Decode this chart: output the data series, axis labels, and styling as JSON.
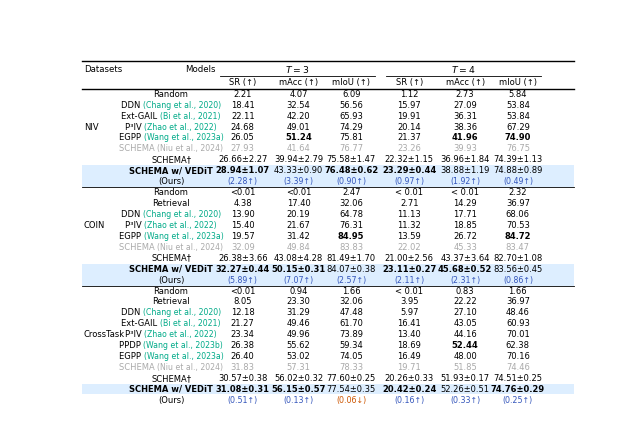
{
  "highlight_color": "#ddeeff",
  "gray_color": "#aaaaaa",
  "green_color": "#00aa88",
  "blue_color": "#3355bb",
  "orange_color": "#cc5500",
  "col_headers": [
    "SR (↑)",
    "mAcc (↑)",
    "mIoU (↑)",
    "SR (↑)",
    "mAcc (↑)",
    "mIoU (↑)"
  ],
  "sections": [
    {
      "dataset": "NIV",
      "ds_row": 3,
      "rows": [
        {
          "model": "Random",
          "cite": "",
          "cite_color": "",
          "gray": false,
          "bold_model": false,
          "bold_vals": [
            false,
            false,
            false,
            false,
            false,
            false
          ],
          "vals": [
            "2.21",
            "4.07",
            "6.09",
            "1.12",
            "2.73",
            "5.84"
          ],
          "ours": false,
          "highlight": false,
          "down_idx": []
        },
        {
          "model": "DDN",
          "cite": "(Chang et al., 2020)",
          "cite_color": "#00aa88",
          "gray": false,
          "bold_model": false,
          "bold_vals": [
            false,
            false,
            false,
            false,
            false,
            false
          ],
          "vals": [
            "18.41",
            "32.54",
            "56.56",
            "15.97",
            "27.09",
            "53.84"
          ],
          "ours": false,
          "highlight": false,
          "down_idx": []
        },
        {
          "model": "Ext-GAIL",
          "cite": "(Bi et al., 2021)",
          "cite_color": "#00aa88",
          "gray": false,
          "bold_model": false,
          "bold_vals": [
            false,
            false,
            false,
            false,
            false,
            false
          ],
          "vals": [
            "22.11",
            "42.20",
            "65.93",
            "19.91",
            "36.31",
            "53.84"
          ],
          "ours": false,
          "highlight": false,
          "down_idx": []
        },
        {
          "model": "P³IV",
          "cite": "(Zhao et al., 2022)",
          "cite_color": "#00aa88",
          "gray": false,
          "bold_model": false,
          "bold_vals": [
            false,
            false,
            false,
            false,
            false,
            false
          ],
          "vals": [
            "24.68",
            "49.01",
            "74.29",
            "20.14",
            "38.36",
            "67.29"
          ],
          "ours": false,
          "highlight": false,
          "down_idx": []
        },
        {
          "model": "EGPP",
          "cite": "(Wang et al., 2023a)",
          "cite_color": "#00aa88",
          "gray": false,
          "bold_model": false,
          "bold_vals": [
            false,
            true,
            false,
            false,
            true,
            true
          ],
          "vals": [
            "26.05",
            "51.24",
            "75.81",
            "21.37",
            "41.96",
            "74.90"
          ],
          "ours": false,
          "highlight": false,
          "down_idx": []
        },
        {
          "model": "SCHEMA",
          "cite": "(Niu et al., 2024)",
          "cite_color": "#aaaaaa",
          "gray": true,
          "bold_model": false,
          "bold_vals": [
            false,
            false,
            false,
            false,
            false,
            false
          ],
          "vals": [
            "27.93",
            "41.64",
            "76.77",
            "23.26",
            "39.93",
            "76.75"
          ],
          "ours": false,
          "highlight": false,
          "down_idx": []
        },
        {
          "model": "SCHEMA†",
          "cite": "",
          "cite_color": "",
          "gray": false,
          "bold_model": false,
          "bold_vals": [
            false,
            false,
            false,
            false,
            false,
            false
          ],
          "vals": [
            "26.66±2.27",
            "39.94±2.79",
            "75.58±1.47",
            "22.32±1.15",
            "36.96±1.84",
            "74.39±1.13"
          ],
          "ours": false,
          "highlight": false,
          "down_idx": []
        },
        {
          "model": "SCHEMA w/ VEDiT",
          "cite": "",
          "cite_color": "",
          "gray": false,
          "bold_model": true,
          "bold_vals": [
            true,
            false,
            true,
            true,
            false,
            false
          ],
          "vals": [
            "28.94±1.07",
            "43.33±0.90",
            "76.48±0.62",
            "23.29±0.44",
            "38.88±1.19",
            "74.88±0.89"
          ],
          "ours": false,
          "highlight": true,
          "down_idx": []
        },
        {
          "model": "(Ours)",
          "cite": "",
          "cite_color": "",
          "gray": false,
          "bold_model": false,
          "bold_vals": [
            false,
            false,
            false,
            false,
            false,
            false
          ],
          "vals": [
            "(2.28↑)",
            "(3.39↑)",
            "(0.90↑)",
            "(0.97↑)",
            "(1.92↑)",
            "(0.49↑)"
          ],
          "ours": true,
          "highlight": true,
          "down_idx": []
        }
      ]
    },
    {
      "dataset": "COIN",
      "ds_row": 3,
      "rows": [
        {
          "model": "Random",
          "cite": "",
          "cite_color": "",
          "gray": false,
          "bold_model": false,
          "bold_vals": [
            false,
            false,
            false,
            false,
            false,
            false
          ],
          "vals": [
            "<0.01",
            "<0.01",
            "2.47",
            "< 0.01",
            "< 0.01",
            "2.32"
          ],
          "ours": false,
          "highlight": false,
          "down_idx": []
        },
        {
          "model": "Retrieval",
          "cite": "",
          "cite_color": "",
          "gray": false,
          "bold_model": false,
          "bold_vals": [
            false,
            false,
            false,
            false,
            false,
            false
          ],
          "vals": [
            "4.38",
            "17.40",
            "32.06",
            "2.71",
            "14.29",
            "36.97"
          ],
          "ours": false,
          "highlight": false,
          "down_idx": []
        },
        {
          "model": "DDN",
          "cite": "(Chang et al., 2020)",
          "cite_color": "#00aa88",
          "gray": false,
          "bold_model": false,
          "bold_vals": [
            false,
            false,
            false,
            false,
            false,
            false
          ],
          "vals": [
            "13.90",
            "20.19",
            "64.78",
            "11.13",
            "17.71",
            "68.06"
          ],
          "ours": false,
          "highlight": false,
          "down_idx": []
        },
        {
          "model": "P³IV",
          "cite": "(Zhao et al., 2022)",
          "cite_color": "#00aa88",
          "gray": false,
          "bold_model": false,
          "bold_vals": [
            false,
            false,
            false,
            false,
            false,
            false
          ],
          "vals": [
            "15.40",
            "21.67",
            "76.31",
            "11.32",
            "18.85",
            "70.53"
          ],
          "ours": false,
          "highlight": false,
          "down_idx": []
        },
        {
          "model": "EGPP",
          "cite": "(Wang et al., 2023a)",
          "cite_color": "#00aa88",
          "gray": false,
          "bold_model": false,
          "bold_vals": [
            false,
            false,
            true,
            false,
            false,
            true
          ],
          "vals": [
            "19.57",
            "31.42",
            "84.95",
            "13.59",
            "26.72",
            "84.72"
          ],
          "ours": false,
          "highlight": false,
          "down_idx": []
        },
        {
          "model": "SCHEMA",
          "cite": "(Niu et al., 2024)",
          "cite_color": "#aaaaaa",
          "gray": true,
          "bold_model": false,
          "bold_vals": [
            false,
            false,
            false,
            false,
            false,
            false
          ],
          "vals": [
            "32.09",
            "49.84",
            "83.83",
            "22.02",
            "45.33",
            "83.47"
          ],
          "ours": false,
          "highlight": false,
          "down_idx": []
        },
        {
          "model": "SCHEMA†",
          "cite": "",
          "cite_color": "",
          "gray": false,
          "bold_model": false,
          "bold_vals": [
            false,
            false,
            false,
            false,
            false,
            false
          ],
          "vals": [
            "26.38±3.66",
            "43.08±4.28",
            "81.49±1.70",
            "21.00±2.56",
            "43.37±3.64",
            "82.70±1.08"
          ],
          "ours": false,
          "highlight": false,
          "down_idx": []
        },
        {
          "model": "SCHEMA w/ VEDiT",
          "cite": "",
          "cite_color": "",
          "gray": false,
          "bold_model": true,
          "bold_vals": [
            true,
            true,
            false,
            true,
            true,
            false
          ],
          "vals": [
            "32.27±0.44",
            "50.15±0.31",
            "84.07±0.38",
            "23.11±0.27",
            "45.68±0.52",
            "83.56±0.45"
          ],
          "ours": false,
          "highlight": true,
          "down_idx": []
        },
        {
          "model": "(Ours)",
          "cite": "",
          "cite_color": "",
          "gray": false,
          "bold_model": false,
          "bold_vals": [
            false,
            false,
            false,
            false,
            false,
            false
          ],
          "vals": [
            "(5.89↑)",
            "(7.07↑)",
            "(2.57↑)",
            "(2.11↑)",
            "(2.31↑)",
            "(0.86↑)"
          ],
          "ours": true,
          "highlight": true,
          "down_idx": []
        }
      ]
    },
    {
      "dataset": "CrossTask",
      "ds_row": 4,
      "rows": [
        {
          "model": "Random",
          "cite": "",
          "cite_color": "",
          "gray": false,
          "bold_model": false,
          "bold_vals": [
            false,
            false,
            false,
            false,
            false,
            false
          ],
          "vals": [
            "<0.01",
            "0.94",
            "1.66",
            "< 0.01",
            "0.83",
            "1.66"
          ],
          "ours": false,
          "highlight": false,
          "down_idx": []
        },
        {
          "model": "Retrieval",
          "cite": "",
          "cite_color": "",
          "gray": false,
          "bold_model": false,
          "bold_vals": [
            false,
            false,
            false,
            false,
            false,
            false
          ],
          "vals": [
            "8.05",
            "23.30",
            "32.06",
            "3.95",
            "22.22",
            "36.97"
          ],
          "ours": false,
          "highlight": false,
          "down_idx": []
        },
        {
          "model": "DDN",
          "cite": "(Chang et al., 2020)",
          "cite_color": "#00aa88",
          "gray": false,
          "bold_model": false,
          "bold_vals": [
            false,
            false,
            false,
            false,
            false,
            false
          ],
          "vals": [
            "12.18",
            "31.29",
            "47.48",
            "5.97",
            "27.10",
            "48.46"
          ],
          "ours": false,
          "highlight": false,
          "down_idx": []
        },
        {
          "model": "Ext-GAIL",
          "cite": "(Bi et al., 2021)",
          "cite_color": "#00aa88",
          "gray": false,
          "bold_model": false,
          "bold_vals": [
            false,
            false,
            false,
            false,
            false,
            false
          ],
          "vals": [
            "21.27",
            "49.46",
            "61.70",
            "16.41",
            "43.05",
            "60.93"
          ],
          "ours": false,
          "highlight": false,
          "down_idx": []
        },
        {
          "model": "P³IV",
          "cite": "(Zhao et al., 2022)",
          "cite_color": "#00aa88",
          "gray": false,
          "bold_model": false,
          "bold_vals": [
            false,
            false,
            false,
            false,
            false,
            false
          ],
          "vals": [
            "23.34",
            "49.96",
            "73.89",
            "13.40",
            "44.16",
            "70.01"
          ],
          "ours": false,
          "highlight": false,
          "down_idx": []
        },
        {
          "model": "PPDP",
          "cite": "(Wang et al., 2023b)",
          "cite_color": "#00aa88",
          "gray": false,
          "bold_model": false,
          "bold_vals": [
            false,
            false,
            false,
            false,
            true,
            false
          ],
          "vals": [
            "26.38",
            "55.62",
            "59.34",
            "18.69",
            "52.44",
            "62.38"
          ],
          "ours": false,
          "highlight": false,
          "down_idx": []
        },
        {
          "model": "EGPP",
          "cite": "(Wang et al., 2023a)",
          "cite_color": "#00aa88",
          "gray": false,
          "bold_model": false,
          "bold_vals": [
            false,
            false,
            false,
            false,
            false,
            false
          ],
          "vals": [
            "26.40",
            "53.02",
            "74.05",
            "16.49",
            "48.00",
            "70.16"
          ],
          "ours": false,
          "highlight": false,
          "down_idx": []
        },
        {
          "model": "SCHEMA",
          "cite": "(Niu et al., 2024)",
          "cite_color": "#aaaaaa",
          "gray": true,
          "bold_model": false,
          "bold_vals": [
            false,
            false,
            false,
            false,
            false,
            false
          ],
          "vals": [
            "31.83",
            "57.31",
            "78.33",
            "19.71",
            "51.85",
            "74.46"
          ],
          "ours": false,
          "highlight": false,
          "down_idx": []
        },
        {
          "model": "SCHEMA†",
          "cite": "",
          "cite_color": "",
          "gray": false,
          "bold_model": false,
          "bold_vals": [
            false,
            false,
            false,
            false,
            false,
            false
          ],
          "vals": [
            "30.57±0.38",
            "56.02±0.32",
            "77.60±0.25",
            "20.26±0.33",
            "51.93±0.17",
            "74.51±0.25"
          ],
          "ours": false,
          "highlight": false,
          "down_idx": []
        },
        {
          "model": "SCHEMA w/ VEDiT",
          "cite": "",
          "cite_color": "",
          "gray": false,
          "bold_model": true,
          "bold_vals": [
            true,
            true,
            false,
            true,
            false,
            true
          ],
          "vals": [
            "31.08±0.31",
            "56.15±0.57",
            "77.54±0.35",
            "20.42±0.24",
            "52.26±0.51",
            "74.76±0.29"
          ],
          "ours": false,
          "highlight": true,
          "down_idx": []
        },
        {
          "model": "(Ours)",
          "cite": "",
          "cite_color": "",
          "gray": false,
          "bold_model": false,
          "bold_vals": [
            false,
            false,
            false,
            false,
            false,
            false
          ],
          "vals": [
            "(0.51↑)",
            "(0.13↑)",
            "(0.06↓)",
            "(0.16↑)",
            "(0.33↑)",
            "(0.25↑)"
          ],
          "ours": true,
          "highlight": true,
          "down_idx": [
            2
          ]
        }
      ]
    }
  ]
}
